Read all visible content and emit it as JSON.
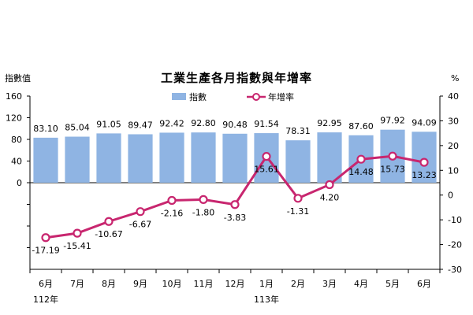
{
  "chart_data": {
    "type": "bar+line",
    "title": "工業生產各月指數與年增率",
    "left_axis_label": "指數值",
    "right_axis_label": "%",
    "categories": [
      "6月",
      "7月",
      "8月",
      "9月",
      "10月",
      "11月",
      "12月",
      "1月",
      "2月",
      "3月",
      "4月",
      "5月",
      "6月"
    ],
    "year_labels": [
      {
        "index": 0,
        "label": "112年"
      },
      {
        "index": 7,
        "label": "113年"
      }
    ],
    "left_axis": {
      "min": -160,
      "max": 160,
      "ticks": [
        0,
        40,
        80,
        120,
        160
      ],
      "tick_labels": [
        "0",
        "40",
        "80",
        "120",
        "160"
      ]
    },
    "right_axis": {
      "min": -30,
      "max": 40,
      "ticks": [
        -30,
        -20,
        -10,
        0,
        10,
        20,
        30,
        40
      ],
      "tick_labels": [
        "-30",
        "-20",
        "-10",
        "0",
        "10",
        "20",
        "30",
        "40"
      ]
    },
    "series": [
      {
        "name": "指數",
        "type": "bar",
        "axis": "left",
        "color": "#8FB4E3",
        "values": [
          83.1,
          85.04,
          91.05,
          89.47,
          92.42,
          92.8,
          90.48,
          91.54,
          78.31,
          92.95,
          87.6,
          97.92,
          94.09
        ],
        "labels": [
          "83.10",
          "85.04",
          "91.05",
          "89.47",
          "92.42",
          "92.80",
          "90.48",
          "91.54",
          "78.31",
          "92.95",
          "87.60",
          "97.92",
          "94.09"
        ]
      },
      {
        "name": "年增率",
        "type": "line",
        "axis": "right",
        "color": "#C8266F",
        "values": [
          -17.19,
          -15.41,
          -10.67,
          -6.67,
          -2.16,
          -1.8,
          -3.83,
          15.61,
          -1.31,
          4.2,
          14.48,
          15.73,
          13.23
        ],
        "labels": [
          "-17.19",
          "-15.41",
          "-10.67",
          "-6.67",
          "-2.16",
          "-1.80",
          "-3.83",
          "15.61",
          "-1.31",
          "4.20",
          "14.48",
          "15.73",
          "13.23"
        ]
      }
    ],
    "grid": false,
    "legend_position": "top-center"
  }
}
